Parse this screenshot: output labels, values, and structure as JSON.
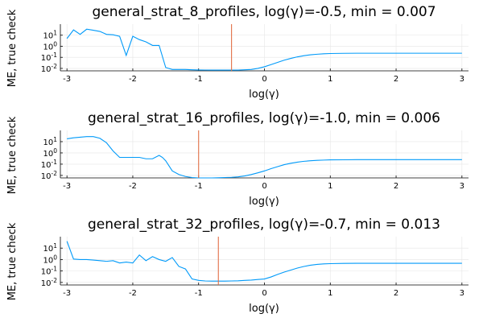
{
  "chart_data": [
    {
      "type": "line",
      "title": "general_strat_8_profiles, log(γ)=-0.5, min = 0.007",
      "xlabel": "log(γ)",
      "ylabel": "ME, true check",
      "xlim": [
        -3.1,
        3.1
      ],
      "ylim": [
        0.006,
        100
      ],
      "yscale": "log",
      "xticks": [
        -3,
        -2,
        -1,
        0,
        1,
        2,
        3
      ],
      "yticks": [
        {
          "v": 10,
          "base": "10",
          "exp": "1"
        },
        {
          "v": 1,
          "base": "10",
          "exp": "0"
        },
        {
          "v": 0.1,
          "base": "10",
          "exp": "-1"
        },
        {
          "v": 0.01,
          "base": "10",
          "exp": "-2"
        }
      ],
      "grid": true,
      "vline": -0.5,
      "colors": {
        "series": "#009af9",
        "vline": "#e26f46"
      },
      "series": [
        {
          "x": [
            -3.0,
            -2.9,
            -2.8,
            -2.7,
            -2.6,
            -2.5,
            -2.4,
            -2.3,
            -2.2,
            -2.1,
            -2.0,
            -1.9,
            -1.8,
            -1.7,
            -1.6,
            -1.5,
            -1.4,
            -1.3,
            -1.2,
            -1.1,
            -1.0,
            -0.9,
            -0.8,
            -0.7,
            -0.6,
            -0.5,
            -0.4,
            -0.3,
            -0.2,
            -0.1,
            0.0,
            0.1,
            0.2,
            0.3,
            0.4,
            0.5,
            0.6,
            0.7,
            0.8,
            0.9,
            1.0,
            1.2,
            1.4,
            1.6,
            1.8,
            2.0,
            2.2,
            2.4,
            2.6,
            2.8,
            3.0
          ],
          "y": [
            5,
            30,
            12,
            35,
            28,
            22,
            12,
            11,
            8,
            0.15,
            8,
            4,
            2.5,
            1.2,
            1.2,
            0.012,
            0.008,
            0.008,
            0.008,
            0.0075,
            0.0072,
            0.0071,
            0.007,
            0.007,
            0.007,
            0.007,
            0.007,
            0.0075,
            0.008,
            0.01,
            0.014,
            0.022,
            0.035,
            0.055,
            0.08,
            0.11,
            0.14,
            0.17,
            0.19,
            0.21,
            0.22,
            0.23,
            0.235,
            0.235,
            0.235,
            0.235,
            0.235,
            0.235,
            0.235,
            0.235,
            0.235
          ]
        }
      ]
    },
    {
      "type": "line",
      "title": "general_strat_16_profiles, log(γ)=-1.0, min = 0.006",
      "xlabel": "log(γ)",
      "ylabel": "ME, true check",
      "xlim": [
        -3.1,
        3.1
      ],
      "ylim": [
        0.006,
        100
      ],
      "yscale": "log",
      "xticks": [
        -3,
        -2,
        -1,
        0,
        1,
        2,
        3
      ],
      "yticks": [
        {
          "v": 10,
          "base": "10",
          "exp": "1"
        },
        {
          "v": 1,
          "base": "10",
          "exp": "0"
        },
        {
          "v": 0.1,
          "base": "10",
          "exp": "-1"
        },
        {
          "v": 0.01,
          "base": "10",
          "exp": "-2"
        }
      ],
      "grid": true,
      "vline": -1.0,
      "colors": {
        "series": "#009af9",
        "vline": "#e26f46"
      },
      "series": [
        {
          "x": [
            -3.0,
            -2.9,
            -2.8,
            -2.7,
            -2.6,
            -2.5,
            -2.4,
            -2.3,
            -2.2,
            -2.1,
            -2.0,
            -1.9,
            -1.8,
            -1.7,
            -1.6,
            -1.55,
            -1.5,
            -1.4,
            -1.3,
            -1.2,
            -1.1,
            -1.0,
            -0.9,
            -0.8,
            -0.7,
            -0.6,
            -0.5,
            -0.4,
            -0.3,
            -0.2,
            -0.1,
            0.0,
            0.1,
            0.2,
            0.3,
            0.4,
            0.5,
            0.6,
            0.7,
            0.8,
            0.9,
            1.0,
            1.2,
            1.4,
            1.6,
            1.8,
            2.0,
            2.2,
            2.4,
            2.6,
            2.8,
            3.0
          ],
          "y": [
            18,
            22,
            25,
            28,
            28,
            20,
            8,
            1.5,
            0.4,
            0.4,
            0.4,
            0.4,
            0.3,
            0.3,
            0.6,
            0.4,
            0.2,
            0.025,
            0.012,
            0.008,
            0.0065,
            0.006,
            0.006,
            0.006,
            0.0062,
            0.0065,
            0.0068,
            0.0075,
            0.009,
            0.012,
            0.017,
            0.025,
            0.04,
            0.06,
            0.09,
            0.12,
            0.15,
            0.18,
            0.2,
            0.22,
            0.23,
            0.24,
            0.245,
            0.25,
            0.25,
            0.25,
            0.25,
            0.25,
            0.25,
            0.25,
            0.25,
            0.25
          ]
        }
      ]
    },
    {
      "type": "line",
      "title": "general_strat_32_profiles, log(γ)=-0.7, min = 0.013",
      "xlabel": "log(γ)",
      "ylabel": "ME, true check",
      "xlim": [
        -3.1,
        3.1
      ],
      "ylim": [
        0.006,
        100
      ],
      "yscale": "log",
      "xticks": [
        -3,
        -2,
        -1,
        0,
        1,
        2,
        3
      ],
      "yticks": [
        {
          "v": 10,
          "base": "10",
          "exp": "1"
        },
        {
          "v": 1,
          "base": "10",
          "exp": "0"
        },
        {
          "v": 0.1,
          "base": "10",
          "exp": "-1"
        },
        {
          "v": 0.01,
          "base": "10",
          "exp": "-2"
        }
      ],
      "grid": true,
      "vline": -0.7,
      "colors": {
        "series": "#009af9",
        "vline": "#e26f46"
      },
      "series": [
        {
          "x": [
            -3.0,
            -2.9,
            -2.8,
            -2.7,
            -2.6,
            -2.5,
            -2.4,
            -2.3,
            -2.2,
            -2.1,
            -2.0,
            -1.9,
            -1.8,
            -1.7,
            -1.6,
            -1.5,
            -1.4,
            -1.3,
            -1.2,
            -1.1,
            -1.0,
            -0.9,
            -0.8,
            -0.7,
            -0.6,
            -0.5,
            -0.4,
            -0.3,
            -0.2,
            -0.1,
            0.0,
            0.1,
            0.2,
            0.3,
            0.4,
            0.5,
            0.6,
            0.7,
            0.8,
            0.9,
            1.0,
            1.2,
            1.4,
            1.6,
            1.8,
            2.0,
            2.2,
            2.4,
            2.6,
            2.8,
            3.0
          ],
          "y": [
            40,
            1.1,
            1.0,
            1.0,
            0.9,
            0.8,
            0.7,
            0.8,
            0.5,
            0.6,
            0.5,
            2.5,
            0.8,
            1.8,
            1.0,
            0.7,
            1.5,
            0.25,
            0.15,
            0.02,
            0.015,
            0.0135,
            0.013,
            0.013,
            0.013,
            0.0135,
            0.014,
            0.015,
            0.016,
            0.018,
            0.02,
            0.03,
            0.05,
            0.08,
            0.12,
            0.18,
            0.25,
            0.32,
            0.38,
            0.42,
            0.44,
            0.46,
            0.47,
            0.47,
            0.47,
            0.47,
            0.47,
            0.47,
            0.47,
            0.47,
            0.47
          ]
        }
      ]
    }
  ]
}
